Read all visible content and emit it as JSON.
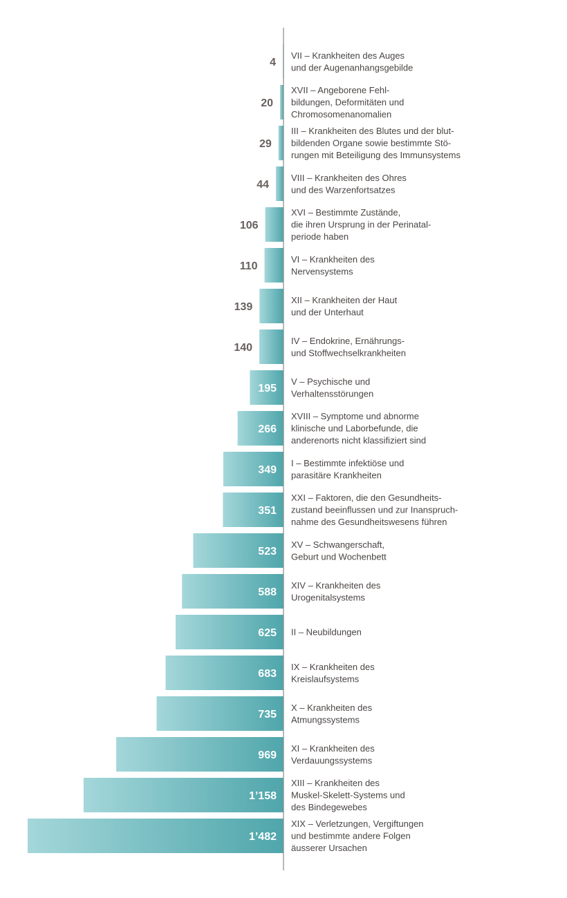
{
  "chart_data": {
    "type": "bar",
    "orientation": "horizontal",
    "grid": false,
    "colors": {
      "bar_light": "#a4d7da",
      "bar_dark": "#4fa6ab",
      "axis": "#8a8a8a",
      "value_outside": "#66605e",
      "value_inside": "#ffffff",
      "label": "#4a4543"
    },
    "xlim": [
      0,
      1482
    ],
    "items": [
      {
        "value": 4,
        "display": "4",
        "label": [
          "VII – Krankheiten des Auges",
          "und der Augenanhangsgebilde"
        ]
      },
      {
        "value": 20,
        "display": "20",
        "label": [
          "XVII – Angeborene Fehl-",
          "bildungen, Deformitäten und",
          "Chromosomenanomalien"
        ]
      },
      {
        "value": 29,
        "display": "29",
        "label": [
          "III – Krankheiten des Blutes und der blut-",
          "bildenden Organe sowie bestimmte Stö-",
          "rungen mit Beteiligung des Immunsystems"
        ]
      },
      {
        "value": 44,
        "display": "44",
        "label": [
          "VIII – Krankheiten des Ohres",
          "und des Warzenfortsatzes"
        ]
      },
      {
        "value": 106,
        "display": "106",
        "label": [
          "XVI – Bestimmte Zustände,",
          "die ihren Ursprung in der Perinatal-",
          "periode haben"
        ]
      },
      {
        "value": 110,
        "display": "110",
        "label": [
          "VI – Krankheiten des",
          "Nervensystems"
        ]
      },
      {
        "value": 139,
        "display": "139",
        "label": [
          "XII – Krankheiten der Haut",
          "und der Unterhaut"
        ]
      },
      {
        "value": 140,
        "display": "140",
        "label": [
          "IV – Endokrine, Ernährungs-",
          "und Stoffwechselkrankheiten"
        ]
      },
      {
        "value": 195,
        "display": "195",
        "label": [
          "V – Psychische und",
          "Verhaltensstörungen"
        ]
      },
      {
        "value": 266,
        "display": "266",
        "label": [
          "XVIII – Symptome und abnorme",
          "klinische und Laborbefunde, die",
          "anderenorts nicht klassifiziert sind"
        ]
      },
      {
        "value": 349,
        "display": "349",
        "label": [
          "I – Bestimmte infektiöse und",
          "parasitäre Krankheiten"
        ]
      },
      {
        "value": 351,
        "display": "351",
        "label": [
          "XXI – Faktoren, die den Gesundheits-",
          "zustand beeinflussen und zur Inanspruch-",
          "nahme des Gesundheitswesens führen"
        ]
      },
      {
        "value": 523,
        "display": "523",
        "label": [
          "XV – Schwangerschaft,",
          "Geburt und Wochenbett"
        ]
      },
      {
        "value": 588,
        "display": "588",
        "label": [
          "XIV – Krankheiten des",
          "Urogenitalsystems"
        ]
      },
      {
        "value": 625,
        "display": "625",
        "label": [
          "II – Neubildungen"
        ]
      },
      {
        "value": 683,
        "display": "683",
        "label": [
          "IX – Krankheiten des",
          "Kreislaufsystems"
        ]
      },
      {
        "value": 735,
        "display": "735",
        "label": [
          "X – Krankheiten des",
          "Atmungssystems"
        ]
      },
      {
        "value": 969,
        "display": "969",
        "label": [
          "XI – Krankheiten des",
          "Verdauungssystems"
        ]
      },
      {
        "value": 1158,
        "display": "1’158",
        "label": [
          "XIII – Krankheiten des",
          "Muskel-Skelett-Systems und",
          "des Bindegewebes"
        ]
      },
      {
        "value": 1482,
        "display": "1’482",
        "label": [
          "XIX – Verletzungen, Vergiftungen",
          "und bestimmte andere Folgen",
          "äusserer Ursachen"
        ]
      }
    ]
  }
}
